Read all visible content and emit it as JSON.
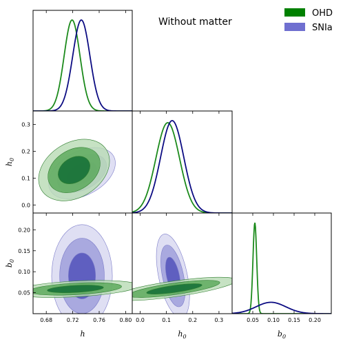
{
  "chart_data": {
    "type": "triangle-corner",
    "title": "Without matter",
    "legend": {
      "placement": "top-right",
      "entries": [
        {
          "name": "OHD",
          "color": "#008000"
        },
        {
          "name": "SNIa",
          "color": "#6f6fd0"
        }
      ]
    },
    "line_colors": {
      "OHD": "#1b8a1b",
      "SNIa": "#0b0b82"
    },
    "parameters": [
      {
        "symbol": "h",
        "sub": "",
        "range": [
          0.66,
          0.81
        ],
        "ticks": [
          "0.68",
          "0.72",
          "0.76",
          "0.80"
        ],
        "tick_values": [
          0.68,
          0.72,
          0.76,
          0.8
        ]
      },
      {
        "symbol": "h",
        "sub": "0",
        "range": [
          -0.03,
          0.35
        ],
        "ticks_x": [
          "0.0",
          "0.1",
          "0.2",
          "0.3"
        ],
        "ticks_y": [
          "0.0",
          "0.1",
          "0.2",
          "0.3"
        ],
        "tick_values": [
          0.0,
          0.1,
          0.2,
          0.3
        ]
      },
      {
        "symbol": "b",
        "sub": "0",
        "range": [
          0.0,
          0.24
        ],
        "ticks_x": [
          "0.05",
          "0.10",
          "0.15",
          "0.20"
        ],
        "ticks_y": [
          "0.05",
          "0.10",
          "0.15",
          "0.20"
        ],
        "tick_values": [
          0.05,
          0.1,
          0.15,
          0.2
        ]
      }
    ],
    "marginals": {
      "OHD": [
        {
          "param": 0,
          "mean": 0.719,
          "sigma": 0.012
        },
        {
          "param": 1,
          "mean": 0.105,
          "sigma": 0.045
        },
        {
          "param": 2,
          "mean": 0.055,
          "sigma": 0.0045
        }
      ],
      "SNIa": [
        {
          "param": 0,
          "mean": 0.733,
          "sigma": 0.013
        },
        {
          "param": 1,
          "mean": 0.122,
          "sigma": 0.044
        },
        {
          "param": 2,
          "mean": 0.094,
          "sigma": 0.036
        }
      ]
    },
    "contours": [
      {
        "series": "OHD",
        "x_param": 0,
        "y_param": 1,
        "center": [
          0.722,
          0.13
        ],
        "semi_axes_1sigma": [
          0.017,
          0.03
        ],
        "angle_deg": 32
      },
      {
        "series": "SNIa",
        "x_param": 0,
        "y_param": 1,
        "center": [
          0.734,
          0.118
        ],
        "semi_axes_1sigma": [
          0.016,
          0.024
        ],
        "angle_deg": 28
      },
      {
        "series": "OHD",
        "x_param": 0,
        "y_param": 2,
        "center": [
          0.724,
          0.059
        ],
        "semi_axes_1sigma": [
          0.028,
          0.0055
        ],
        "angle_deg": 3
      },
      {
        "series": "SNIa",
        "x_param": 0,
        "y_param": 2,
        "center": [
          0.734,
          0.09
        ],
        "semi_axes_1sigma": [
          0.0135,
          0.036
        ],
        "angle_deg": 0
      },
      {
        "series": "OHD",
        "x_param": 1,
        "y_param": 2,
        "center": [
          0.13,
          0.059
        ],
        "semi_axes_1sigma": [
          0.07,
          0.0055
        ],
        "angle_deg": 8
      },
      {
        "series": "SNIa",
        "x_param": 1,
        "y_param": 2,
        "center": [
          0.125,
          0.09
        ],
        "semi_axes_1sigma": [
          0.016,
          0.03
        ],
        "angle_deg": 12
      }
    ],
    "contour_levels": [
      "1-sigma",
      "2-sigma",
      "3-sigma"
    ],
    "fill_colors": {
      "OHD": [
        "#0f6b33",
        "#5aa85a",
        "#b9dcb6"
      ],
      "SNIa": [
        "#5757bd",
        "#a3a3dd",
        "#dcdcf2"
      ]
    },
    "grid": false
  }
}
